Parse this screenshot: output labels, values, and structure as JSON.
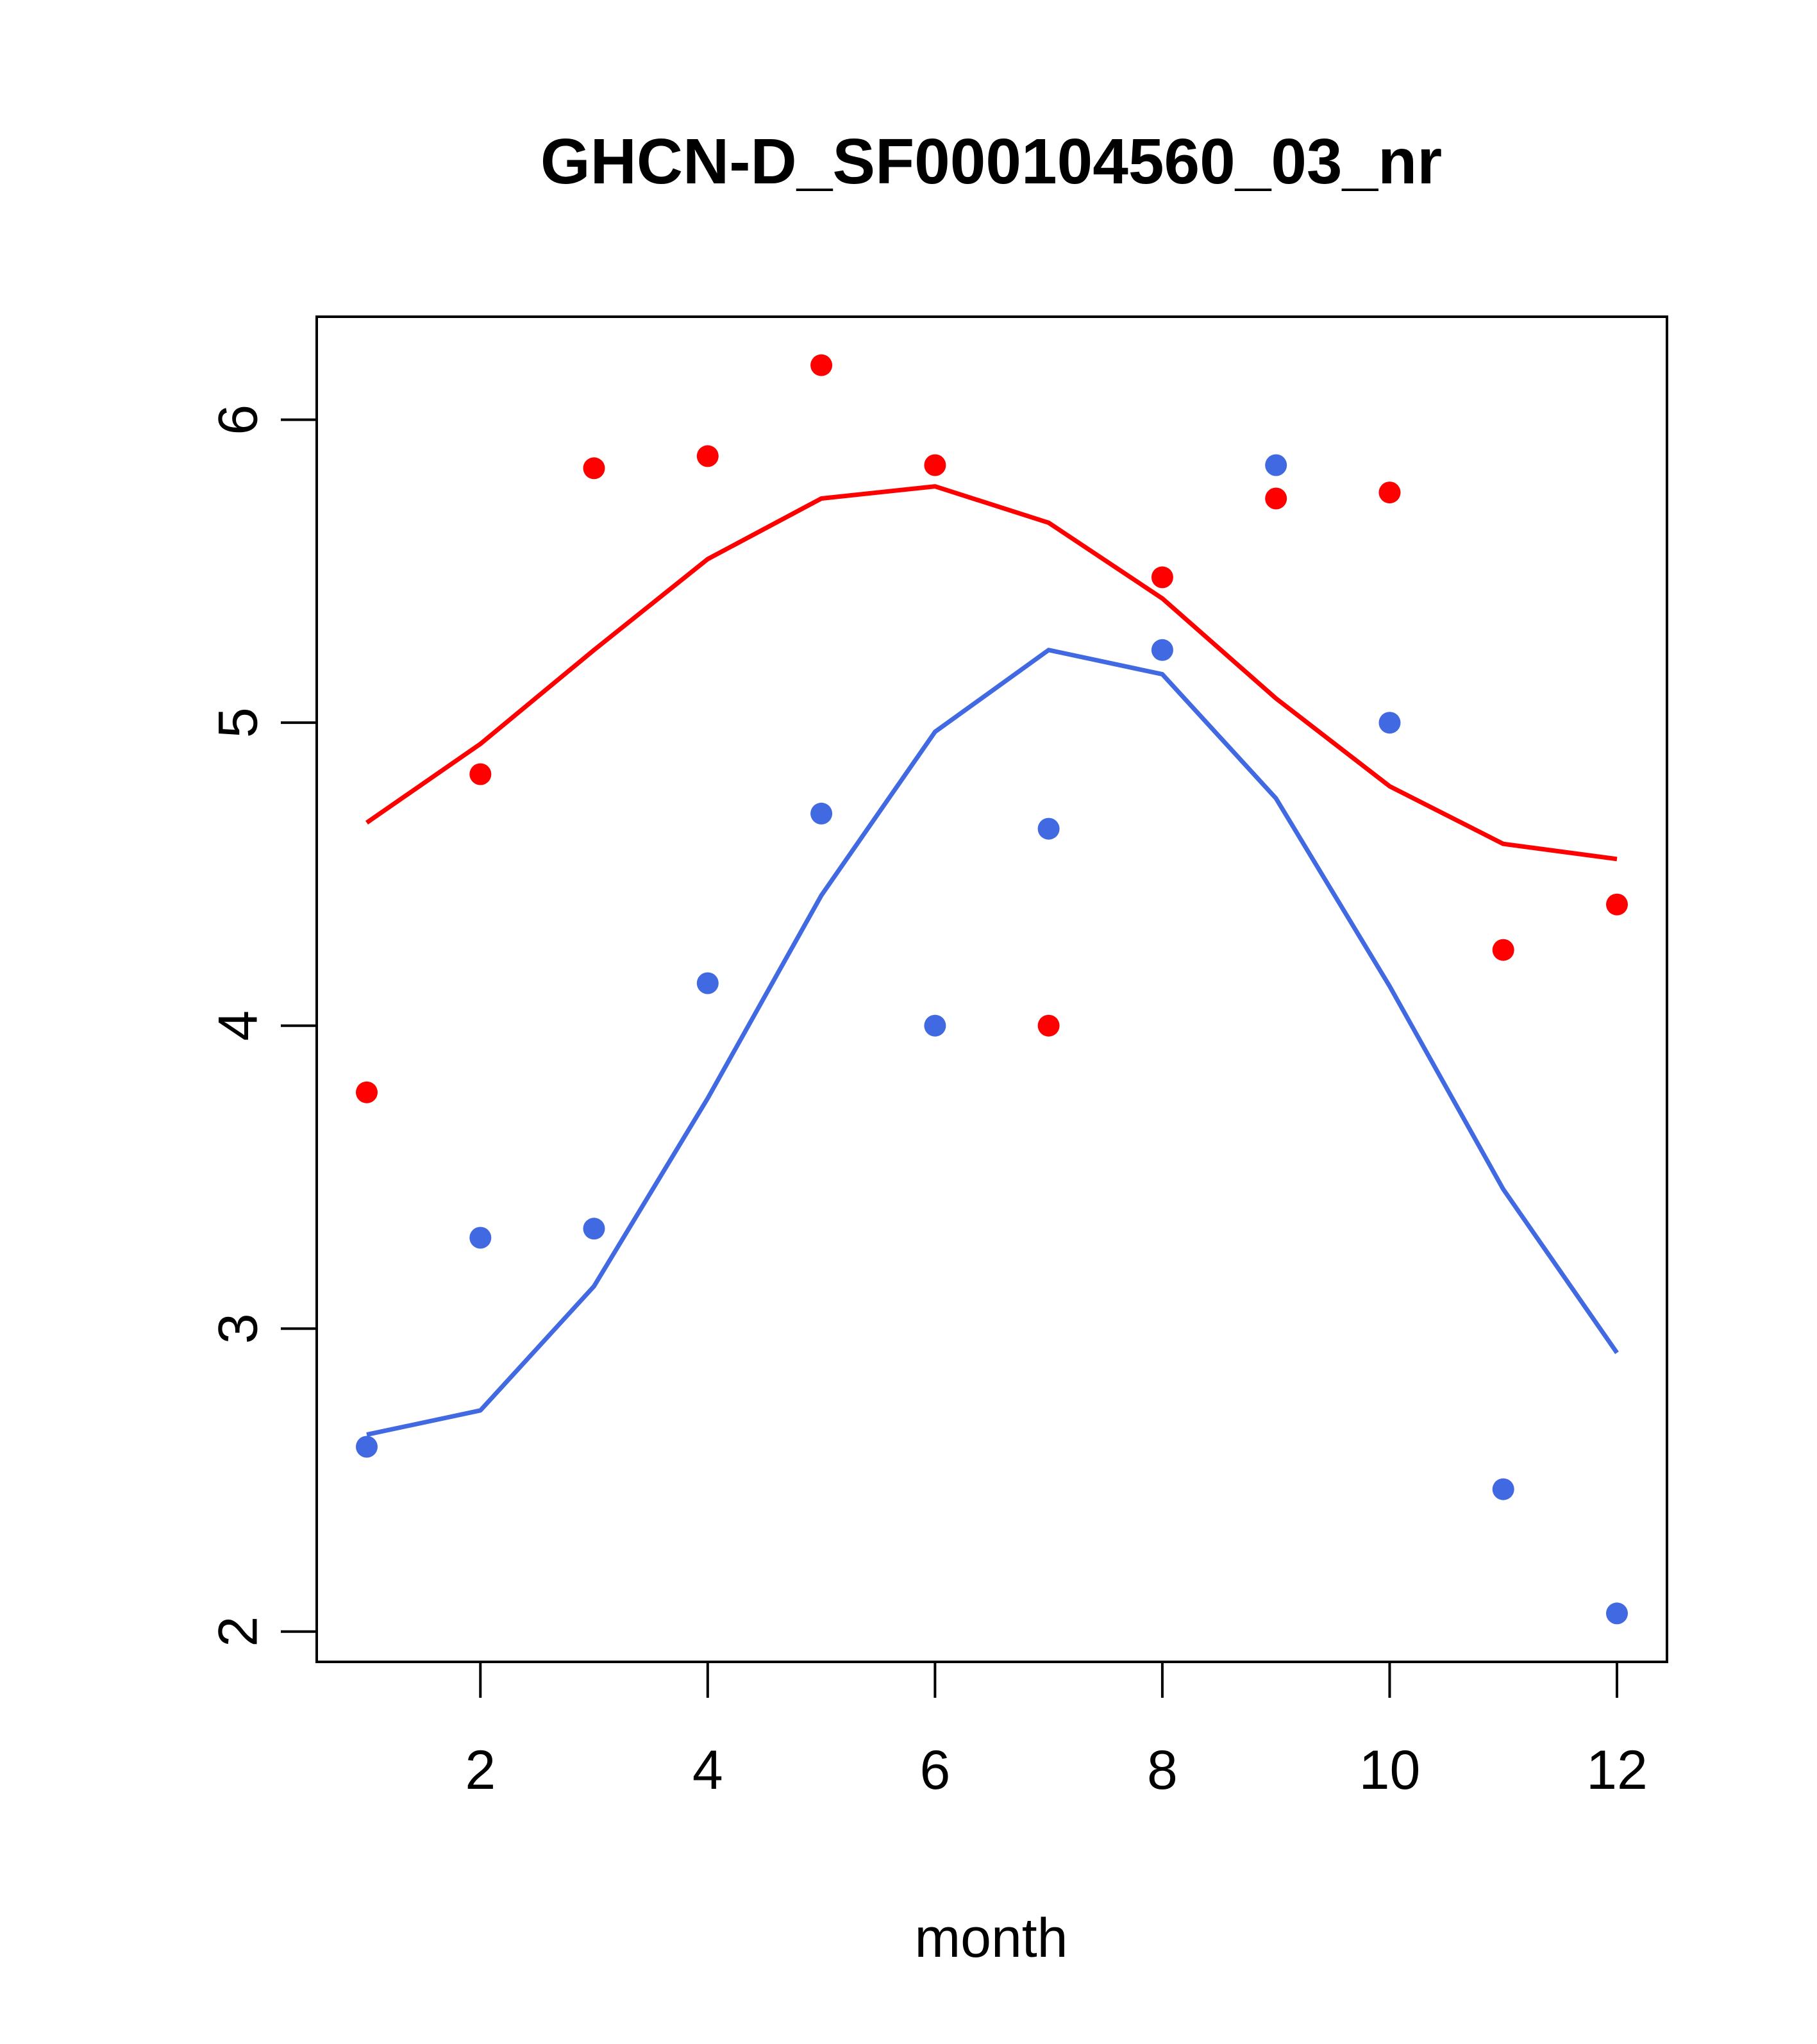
{
  "chart_data": {
    "type": "scatter",
    "title": "GHCN-D_SF000104560_03_nr",
    "xlabel": "month",
    "ylabel": "",
    "xlim": [
      0.56,
      12.44
    ],
    "ylim": [
      1.9,
      6.34
    ],
    "xticks": [
      2,
      4,
      6,
      8,
      10,
      12
    ],
    "xtick_labels": [
      "2",
      "4",
      "6",
      "8",
      "10",
      "12"
    ],
    "yticks": [
      2,
      3,
      4,
      5,
      6
    ],
    "ytick_labels": [
      "2",
      "3",
      "4",
      "5",
      "6"
    ],
    "grid": false,
    "series": [
      {
        "name": "red points",
        "kind": "points",
        "color": "#ff0000",
        "x": [
          1,
          2,
          3,
          4,
          5,
          6,
          7,
          8,
          9,
          10,
          11,
          12
        ],
        "y": [
          3.78,
          4.83,
          5.84,
          5.88,
          6.18,
          5.85,
          4.0,
          5.48,
          5.74,
          5.76,
          4.25,
          4.4
        ]
      },
      {
        "name": "red fitted curve",
        "kind": "line",
        "color": "#ff0000",
        "x": [
          1,
          2,
          3,
          4,
          5,
          6,
          7,
          8,
          9,
          10,
          11,
          12
        ],
        "y": [
          4.67,
          4.93,
          5.24,
          5.54,
          5.74,
          5.78,
          5.66,
          5.41,
          5.08,
          4.79,
          4.6,
          4.55
        ]
      },
      {
        "name": "blue points",
        "kind": "points",
        "color": "#4169e1",
        "x": [
          1,
          2,
          3,
          4,
          5,
          6,
          7,
          8,
          9,
          10,
          11,
          12
        ],
        "y": [
          2.61,
          3.3,
          3.33,
          4.14,
          4.7,
          4.0,
          4.65,
          5.24,
          5.85,
          5.0,
          2.47,
          2.06
        ]
      },
      {
        "name": "blue fitted curve",
        "kind": "line",
        "color": "#4169e1",
        "x": [
          1,
          2,
          3,
          4,
          5,
          6,
          7,
          8,
          9,
          10,
          11,
          12
        ],
        "y": [
          2.65,
          2.73,
          3.14,
          3.76,
          4.43,
          4.97,
          5.24,
          5.16,
          4.75,
          4.13,
          3.46,
          2.92
        ]
      }
    ]
  }
}
